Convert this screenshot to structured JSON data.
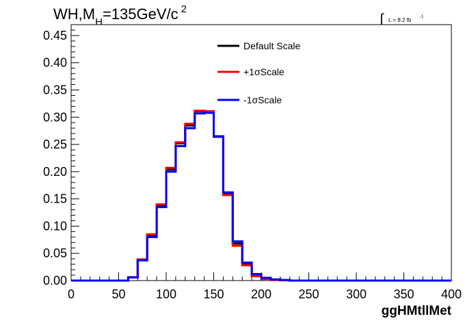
{
  "chart_data": {
    "type": "line",
    "title": {
      "main": "WH,M",
      "sub": "H",
      "rest": "=135GeV/c",
      "sup": "2"
    },
    "lumi": {
      "text": "L = 8.2 fb",
      "sup": "-1"
    },
    "xlabel": "ggHMtllMet",
    "ylabel": "",
    "xlim": [
      0,
      400
    ],
    "ylim": [
      0,
      0.47
    ],
    "bin_width": 10,
    "x_ticks": [
      "0",
      "50",
      "100",
      "150",
      "200",
      "250",
      "300",
      "350",
      "400"
    ],
    "y_ticks": [
      "0.00",
      "0.05",
      "0.10",
      "0.15",
      "0.20",
      "0.25",
      "0.30",
      "0.35",
      "0.40",
      "0.45"
    ],
    "legend_position": "top-center",
    "series": [
      {
        "name": "Default Scale",
        "color": "#000000",
        "values": [
          0,
          0,
          0,
          0,
          0,
          0,
          0.006,
          0.038,
          0.083,
          0.138,
          0.204,
          0.252,
          0.285,
          0.311,
          0.31,
          0.265,
          0.16,
          0.068,
          0.03,
          0.01,
          0.004,
          0.002,
          0.001,
          0,
          0,
          0,
          0,
          0,
          0,
          0,
          0,
          0,
          0,
          0,
          0,
          0,
          0,
          0,
          0,
          0
        ]
      },
      {
        "name": "+1σScale",
        "color": "#ff0000",
        "values": [
          0,
          0,
          0,
          0,
          0,
          0,
          0.006,
          0.039,
          0.085,
          0.14,
          0.207,
          0.254,
          0.288,
          0.312,
          0.311,
          0.264,
          0.157,
          0.064,
          0.028,
          0.008,
          0.003,
          0.001,
          0.0005,
          0,
          0,
          0,
          0,
          0,
          0,
          0,
          0,
          0,
          0,
          0,
          0,
          0,
          0,
          0,
          0,
          0
        ]
      },
      {
        "name": "-1σScale",
        "color": "#0000ff",
        "values": [
          0,
          0,
          0,
          0,
          0,
          0,
          0.006,
          0.037,
          0.08,
          0.135,
          0.2,
          0.247,
          0.28,
          0.307,
          0.308,
          0.264,
          0.162,
          0.072,
          0.033,
          0.012,
          0.005,
          0.002,
          0.001,
          0,
          0,
          0,
          0,
          0,
          0,
          0,
          0,
          0,
          0,
          0,
          0,
          0,
          0,
          0,
          0,
          0
        ]
      }
    ]
  }
}
